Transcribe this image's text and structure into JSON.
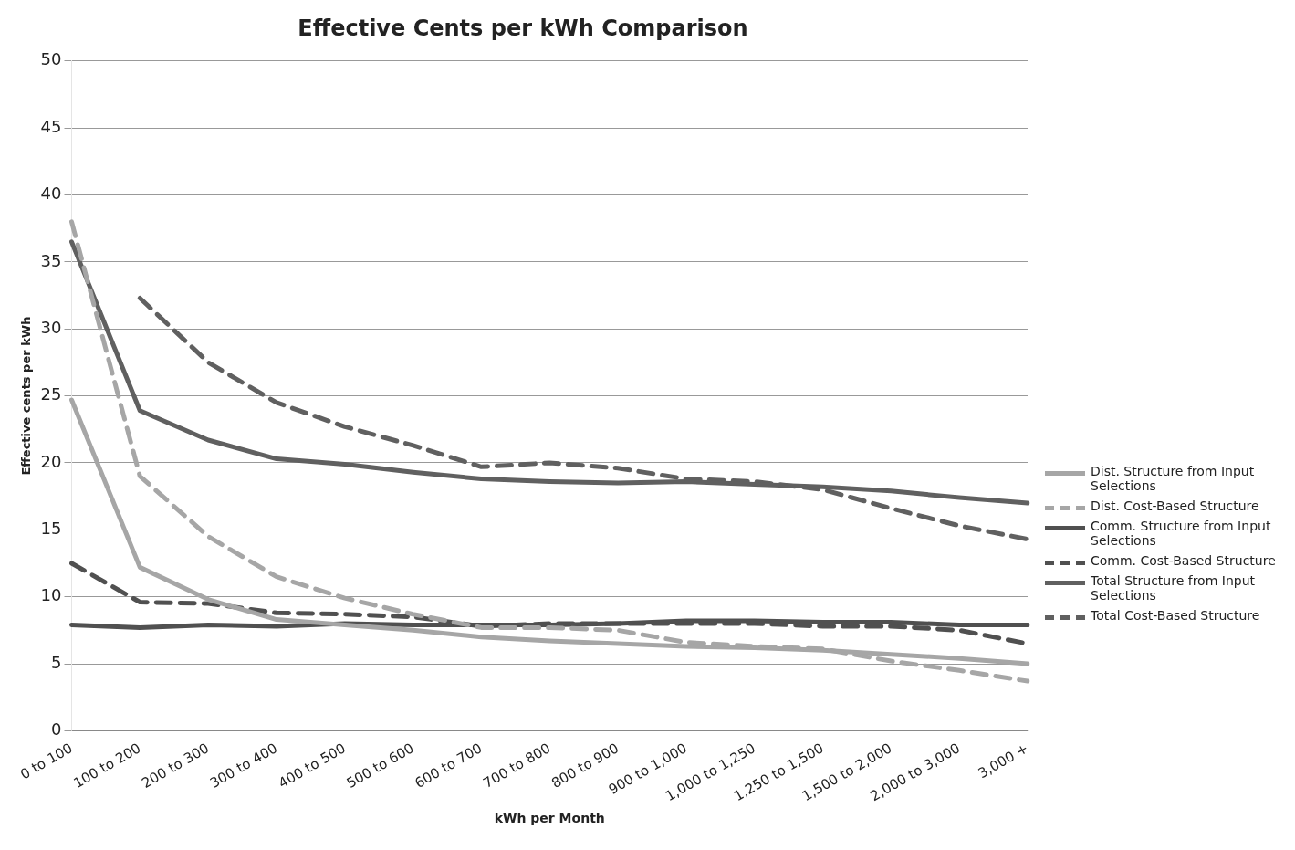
{
  "chart_data": {
    "type": "line",
    "title": "Effective Cents per kWh Comparison",
    "xlabel": "kWh per Month",
    "ylabel": "Effective cents per kWh",
    "categories": [
      "0 to 100",
      "100 to 200",
      "200 to 300",
      "300 to 400",
      "400 to 500",
      "500 to 600",
      "600 to 700",
      "700 to 800",
      "800 to 900",
      "900 to 1,000",
      "1,000 to 1,250",
      "1,250 to 1,500",
      "1,500 to 2,000",
      "2,000 to 3,000",
      "3,000 +"
    ],
    "series": [
      {
        "name": "Dist. Structure from Input Selections",
        "color": "#a6a6a6",
        "line_style": "solid",
        "values": [
          24.7,
          12.2,
          9.8,
          8.3,
          7.9,
          7.5,
          7.0,
          6.7,
          6.5,
          6.3,
          6.2,
          6.0,
          5.7,
          5.4,
          5.0
        ]
      },
      {
        "name": "Dist. Cost-Based Structure",
        "color": "#a6a6a6",
        "line_style": "dashed",
        "values": [
          38,
          19,
          14.5,
          11.5,
          9.9,
          8.7,
          7.7,
          7.7,
          7.5,
          6.6,
          6.3,
          6.1,
          5.2,
          4.5,
          3.7
        ]
      },
      {
        "name": "Comm. Structure from Input Selections",
        "color": "#505050",
        "line_style": "solid",
        "values": [
          7.9,
          7.7,
          7.9,
          7.8,
          8.0,
          7.9,
          7.9,
          7.9,
          8.0,
          8.2,
          8.2,
          8.1,
          8.1,
          7.9,
          7.9
        ]
      },
      {
        "name": "Comm. Cost-Based Structure",
        "color": "#505050",
        "line_style": "dashed",
        "values": [
          12.5,
          9.6,
          9.5,
          8.8,
          8.7,
          8.5,
          7.8,
          8.0,
          8.0,
          8.0,
          8.0,
          7.8,
          7.8,
          7.5,
          6.5
        ]
      },
      {
        "name": "Total Structure from Input Selections",
        "color": "#606060",
        "line_style": "solid",
        "values": [
          36.5,
          23.9,
          21.7,
          20.3,
          19.9,
          19.3,
          18.8,
          18.6,
          18.5,
          18.6,
          18.4,
          18.2,
          17.9,
          17.4,
          17.0
        ]
      },
      {
        "name": "Total Cost-Based Structure",
        "color": "#606060",
        "line_style": "dashed",
        "values": [
          null,
          32.3,
          27.5,
          24.5,
          22.7,
          21.3,
          19.7,
          20.0,
          19.6,
          18.8,
          18.6,
          18.0,
          16.6,
          15.3,
          14.3
        ]
      }
    ],
    "ylim": [
      0,
      50
    ],
    "yticks": [
      0,
      5,
      10,
      15,
      20,
      25,
      30,
      35,
      40,
      45,
      50
    ],
    "grid": "y",
    "legend": "right",
    "marker": "none"
  }
}
